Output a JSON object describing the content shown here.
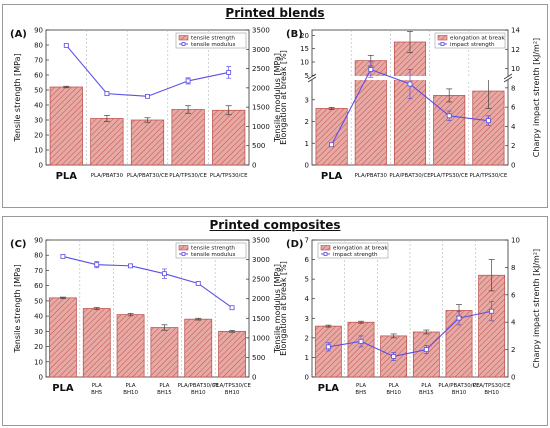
{
  "titles": {
    "blends": "Printed blends",
    "composites": "Printed composites"
  },
  "colors": {
    "bar_fill": "#e7a9a4",
    "bar_hatch": "#c0504d",
    "bar_stroke": "#b94a45",
    "line": "#5b4fe6",
    "grid": "#b5b5b5",
    "frame": "#9a9a9a"
  },
  "chart_data": [
    {
      "panel": "(A)",
      "type": "bar",
      "categories": [
        "PLA",
        "PLA/PBAT30",
        "PLA/PBAT30/CE",
        "PLA/TPS30/CE",
        "PLA/TPS30/CE"
      ],
      "ylabel": "Tensile strength [MPa]",
      "ylim": [
        0,
        90
      ],
      "yticks": [
        0,
        10,
        20,
        30,
        40,
        50,
        60,
        70,
        80,
        90
      ],
      "y2label": "Tensile modulus [MPa]",
      "y2lim": [
        0,
        3500
      ],
      "y2ticks": [
        0,
        500,
        1000,
        1500,
        2000,
        2500,
        3000,
        3500
      ],
      "series": [
        {
          "name": "tensile strength",
          "kind": "bar",
          "axis": "left",
          "values": [
            52.0,
            31.0,
            30.0,
            37.0,
            36.5
          ],
          "errors": [
            0.5,
            2.0,
            1.5,
            2.5,
            3.0
          ]
        },
        {
          "name": "tensile modulus",
          "kind": "line",
          "axis": "right",
          "values": [
            3100,
            1850,
            1780,
            2180,
            2400
          ],
          "errors": [
            30,
            50,
            40,
            80,
            150
          ]
        }
      ],
      "legend": "top-right"
    },
    {
      "panel": "(B)",
      "type": "bar",
      "categories": [
        "PLA",
        "PLA/PBAT30",
        "PLA/PBAT30/CE",
        "PLA/TPS30/CE",
        "PLA/TPS30/CE"
      ],
      "ylabel": "Elongation at break [%]",
      "ylim_lower": [
        0,
        4
      ],
      "yticks_lower": [
        0,
        1,
        2,
        3
      ],
      "ylim_upper": [
        4,
        22
      ],
      "yticks_upper": [
        5,
        10,
        15,
        20
      ],
      "y2label": "Charpy impact strenth [kJ/m²]",
      "y2lim": [
        0,
        14
      ],
      "y2ticks": [
        0,
        2,
        4,
        6,
        8,
        10,
        12,
        14
      ],
      "series": [
        {
          "name": "elongation at break",
          "kind": "bar",
          "axis": "left",
          "values": [
            2.6,
            10.5,
            17.5,
            3.2,
            3.4
          ],
          "errors": [
            0.05,
            2.0,
            4.0,
            0.3,
            0.8
          ]
        },
        {
          "name": "impact strength",
          "kind": "line",
          "axis": "right",
          "values": [
            2.1,
            9.9,
            8.4,
            5.1,
            4.6
          ],
          "errors": [
            0.2,
            0.8,
            1.5,
            0.5,
            0.5
          ]
        }
      ],
      "legend": "top-right"
    },
    {
      "panel": "(C)",
      "type": "bar",
      "categories": [
        "PLA",
        "PLA BH5",
        "PLA BH10",
        "PLA BH15",
        "PLA/PBAT30/CE BH10",
        "PLA/TPS30/CE BH10"
      ],
      "ylabel": "Tensile strength [MPa]",
      "ylim": [
        0,
        90
      ],
      "yticks": [
        0,
        10,
        20,
        30,
        40,
        50,
        60,
        70,
        80,
        90
      ],
      "y2label": "Tensile modulus [MPa]",
      "y2lim": [
        0,
        3500
      ],
      "y2ticks": [
        0,
        500,
        1000,
        1500,
        2000,
        2500,
        3000,
        3500
      ],
      "series": [
        {
          "name": "tensile strength",
          "kind": "bar",
          "axis": "left",
          "values": [
            52.0,
            45.0,
            41.0,
            32.5,
            38.0,
            30.0
          ],
          "errors": [
            0.5,
            0.7,
            0.8,
            1.8,
            0.6,
            0.6
          ]
        },
        {
          "name": "tensile modulus",
          "kind": "line",
          "axis": "right",
          "values": [
            3080,
            2870,
            2840,
            2640,
            2390,
            1770
          ],
          "errors": [
            30,
            80,
            40,
            120,
            40,
            40
          ]
        }
      ],
      "legend": "top-right"
    },
    {
      "panel": "(D)",
      "type": "bar",
      "categories": [
        "PLA",
        "PLA BH5",
        "PLA BH10",
        "PLA BH15",
        "PLA/PBAT30/CE BH10",
        "PLA/TPS30/CE BH10"
      ],
      "ylabel": "Elongation at break [%]",
      "ylim": [
        0,
        7
      ],
      "yticks": [
        0,
        1,
        2,
        3,
        4,
        5,
        6,
        7
      ],
      "y2label": "Charpy impact strenth [kJ/m²]",
      "y2lim": [
        0,
        10
      ],
      "y2ticks": [
        0,
        2,
        4,
        6,
        8,
        10
      ],
      "series": [
        {
          "name": "elongation at break",
          "kind": "bar",
          "axis": "left",
          "values": [
            2.6,
            2.8,
            2.1,
            2.3,
            3.4,
            5.2
          ],
          "errors": [
            0.05,
            0.05,
            0.1,
            0.1,
            0.3,
            0.8
          ]
        },
        {
          "name": "impact strength",
          "kind": "line",
          "axis": "right",
          "values": [
            2.2,
            2.6,
            1.5,
            2.0,
            4.3,
            4.8
          ],
          "errors": [
            0.3,
            0.4,
            0.3,
            0.3,
            0.5,
            0.7
          ]
        }
      ],
      "legend": "top-left"
    }
  ]
}
